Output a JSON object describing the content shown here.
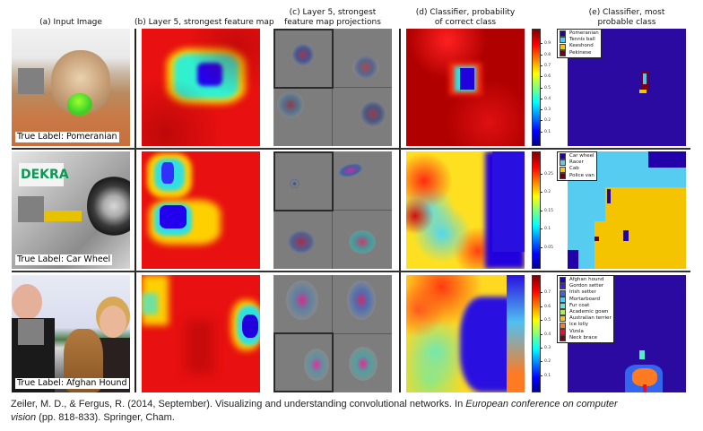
{
  "column_headers": {
    "a": "(a) Input Image",
    "b": "(b) Layer 5, strongest feature map",
    "c_line1": "(c) Layer 5, strongest",
    "c_line2": "feature map projections",
    "d_line1": "(d) Classifier, probability",
    "d_line2": "of correct class",
    "e_line1": "(e) Classifier, most",
    "e_line2": "probable class"
  },
  "rows": [
    {
      "true_label": "True Label: Pomeranian",
      "colorbar_ticks": [
        "0.9",
        "0.8",
        "0.7",
        "0.6",
        "0.5",
        "0.4",
        "0.3",
        "0.2",
        "0.1"
      ],
      "legend": [
        {
          "label": "Pomeranian",
          "color": "#2200aa"
        },
        {
          "label": "Tennis ball",
          "color": "#44ccff"
        },
        {
          "label": "Keeshond",
          "color": "#f5c400"
        },
        {
          "label": "Pekinese",
          "color": "#7a0010"
        }
      ]
    },
    {
      "true_label": "True Label: Car Wheel",
      "colorbar_ticks": [
        "0.25",
        "0.2",
        "0.15",
        "0.1",
        "0.05"
      ],
      "legend": [
        {
          "label": "Car wheel",
          "color": "#2200aa"
        },
        {
          "label": "Racer",
          "color": "#55ccf0"
        },
        {
          "label": "Cab",
          "color": "#f5c400"
        },
        {
          "label": "Police van",
          "color": "#6a0010"
        }
      ]
    },
    {
      "true_label": "True Label: Afghan Hound",
      "colorbar_ticks": [
        "0.7",
        "0.6",
        "0.5",
        "0.4",
        "0.3",
        "0.2",
        "0.1"
      ],
      "legend": [
        {
          "label": "Afghan hound",
          "color": "#2200aa"
        },
        {
          "label": "Gordon setter",
          "color": "#3a22ee"
        },
        {
          "label": "Irish setter",
          "color": "#3366ee"
        },
        {
          "label": "Mortarboard",
          "color": "#44ccff"
        },
        {
          "label": "Fur coat",
          "color": "#55eecc"
        },
        {
          "label": "Academic gown",
          "color": "#aaee55"
        },
        {
          "label": "Australian terrier",
          "color": "#f5c400"
        },
        {
          "label": "Ice lolly",
          "color": "#ff7a20"
        },
        {
          "label": "Vizsla",
          "color": "#e8102a"
        },
        {
          "label": "Neck brace",
          "color": "#7a0010"
        }
      ]
    }
  ],
  "caption": {
    "part1": "Zeiler, M. D., & Fergus, R. (2014, September). Visualizing and understanding convolutional networks. In ",
    "italic1": "European conference on computer",
    "italic2": "vision",
    "part2": " (pp. 818-833). Springer, Cham."
  }
}
